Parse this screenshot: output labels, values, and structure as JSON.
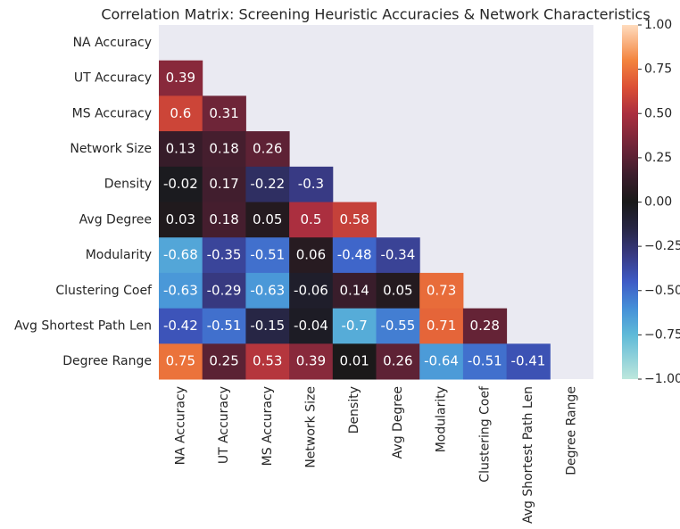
{
  "chart_data": {
    "type": "heatmap",
    "title": "Correlation Matrix: Screening Heuristic Accuracies & Network Characteristics",
    "rows": [
      "NA Accuracy",
      "UT Accuracy",
      "MS Accuracy",
      "Network Size",
      "Density",
      "Avg Degree",
      "Modularity",
      "Clustering Coef",
      "Avg Shortest Path Len",
      "Degree Range"
    ],
    "columns": [
      "NA Accuracy",
      "UT Accuracy",
      "MS Accuracy",
      "Network Size",
      "Density",
      "Avg Degree",
      "Modularity",
      "Clustering Coef",
      "Avg Shortest Path Len",
      "Degree Range"
    ],
    "z": [
      [
        null,
        null,
        null,
        null,
        null,
        null,
        null,
        null,
        null,
        null
      ],
      [
        0.39,
        null,
        null,
        null,
        null,
        null,
        null,
        null,
        null,
        null
      ],
      [
        0.6,
        0.31,
        null,
        null,
        null,
        null,
        null,
        null,
        null,
        null
      ],
      [
        0.13,
        0.18,
        0.26,
        null,
        null,
        null,
        null,
        null,
        null,
        null
      ],
      [
        -0.02,
        0.17,
        -0.22,
        -0.3,
        null,
        null,
        null,
        null,
        null,
        null
      ],
      [
        0.03,
        0.18,
        0.05,
        0.5,
        0.58,
        null,
        null,
        null,
        null,
        null
      ],
      [
        -0.68,
        -0.35,
        -0.51,
        0.06,
        -0.48,
        -0.34,
        null,
        null,
        null,
        null
      ],
      [
        -0.63,
        -0.29,
        -0.63,
        -0.06,
        0.14,
        0.05,
        0.73,
        null,
        null,
        null
      ],
      [
        -0.42,
        -0.51,
        -0.15,
        -0.04,
        -0.7,
        -0.55,
        0.71,
        0.28,
        null,
        null
      ],
      [
        0.75,
        0.25,
        0.53,
        0.39,
        0.01,
        0.26,
        -0.64,
        -0.51,
        -0.41,
        null
      ]
    ],
    "clim": [
      -1,
      1
    ],
    "cbar_ticks": [
      {
        "value": 1,
        "label": "1.00"
      },
      {
        "value": 0.75,
        "label": "0.75"
      },
      {
        "value": 0.5,
        "label": "0.50"
      },
      {
        "value": 0.25,
        "label": "0.25"
      },
      {
        "value": 0,
        "label": "0.00"
      },
      {
        "value": -0.25,
        "label": "−0.25"
      },
      {
        "value": -0.5,
        "label": "−0.50"
      },
      {
        "value": -0.75,
        "label": "−0.75"
      },
      {
        "value": -1,
        "label": "−1.00"
      }
    ],
    "colorscale": [
      [
        -1,
        "#bde7dc"
      ],
      [
        -0.75,
        "#5fbad8"
      ],
      [
        -0.6,
        "#4590d8"
      ],
      [
        -0.45,
        "#3e5bc6"
      ],
      [
        -0.3,
        "#383a84"
      ],
      [
        -0.15,
        "#272645"
      ],
      [
        0,
        "#191919"
      ],
      [
        0.15,
        "#3b1d2c"
      ],
      [
        0.3,
        "#6b2438"
      ],
      [
        0.5,
        "#ab2f3f"
      ],
      [
        0.65,
        "#dc5035"
      ],
      [
        0.8,
        "#f3843e"
      ],
      [
        1,
        "#ffdcbe"
      ]
    ],
    "mask_color": "#eaeaf2"
  }
}
